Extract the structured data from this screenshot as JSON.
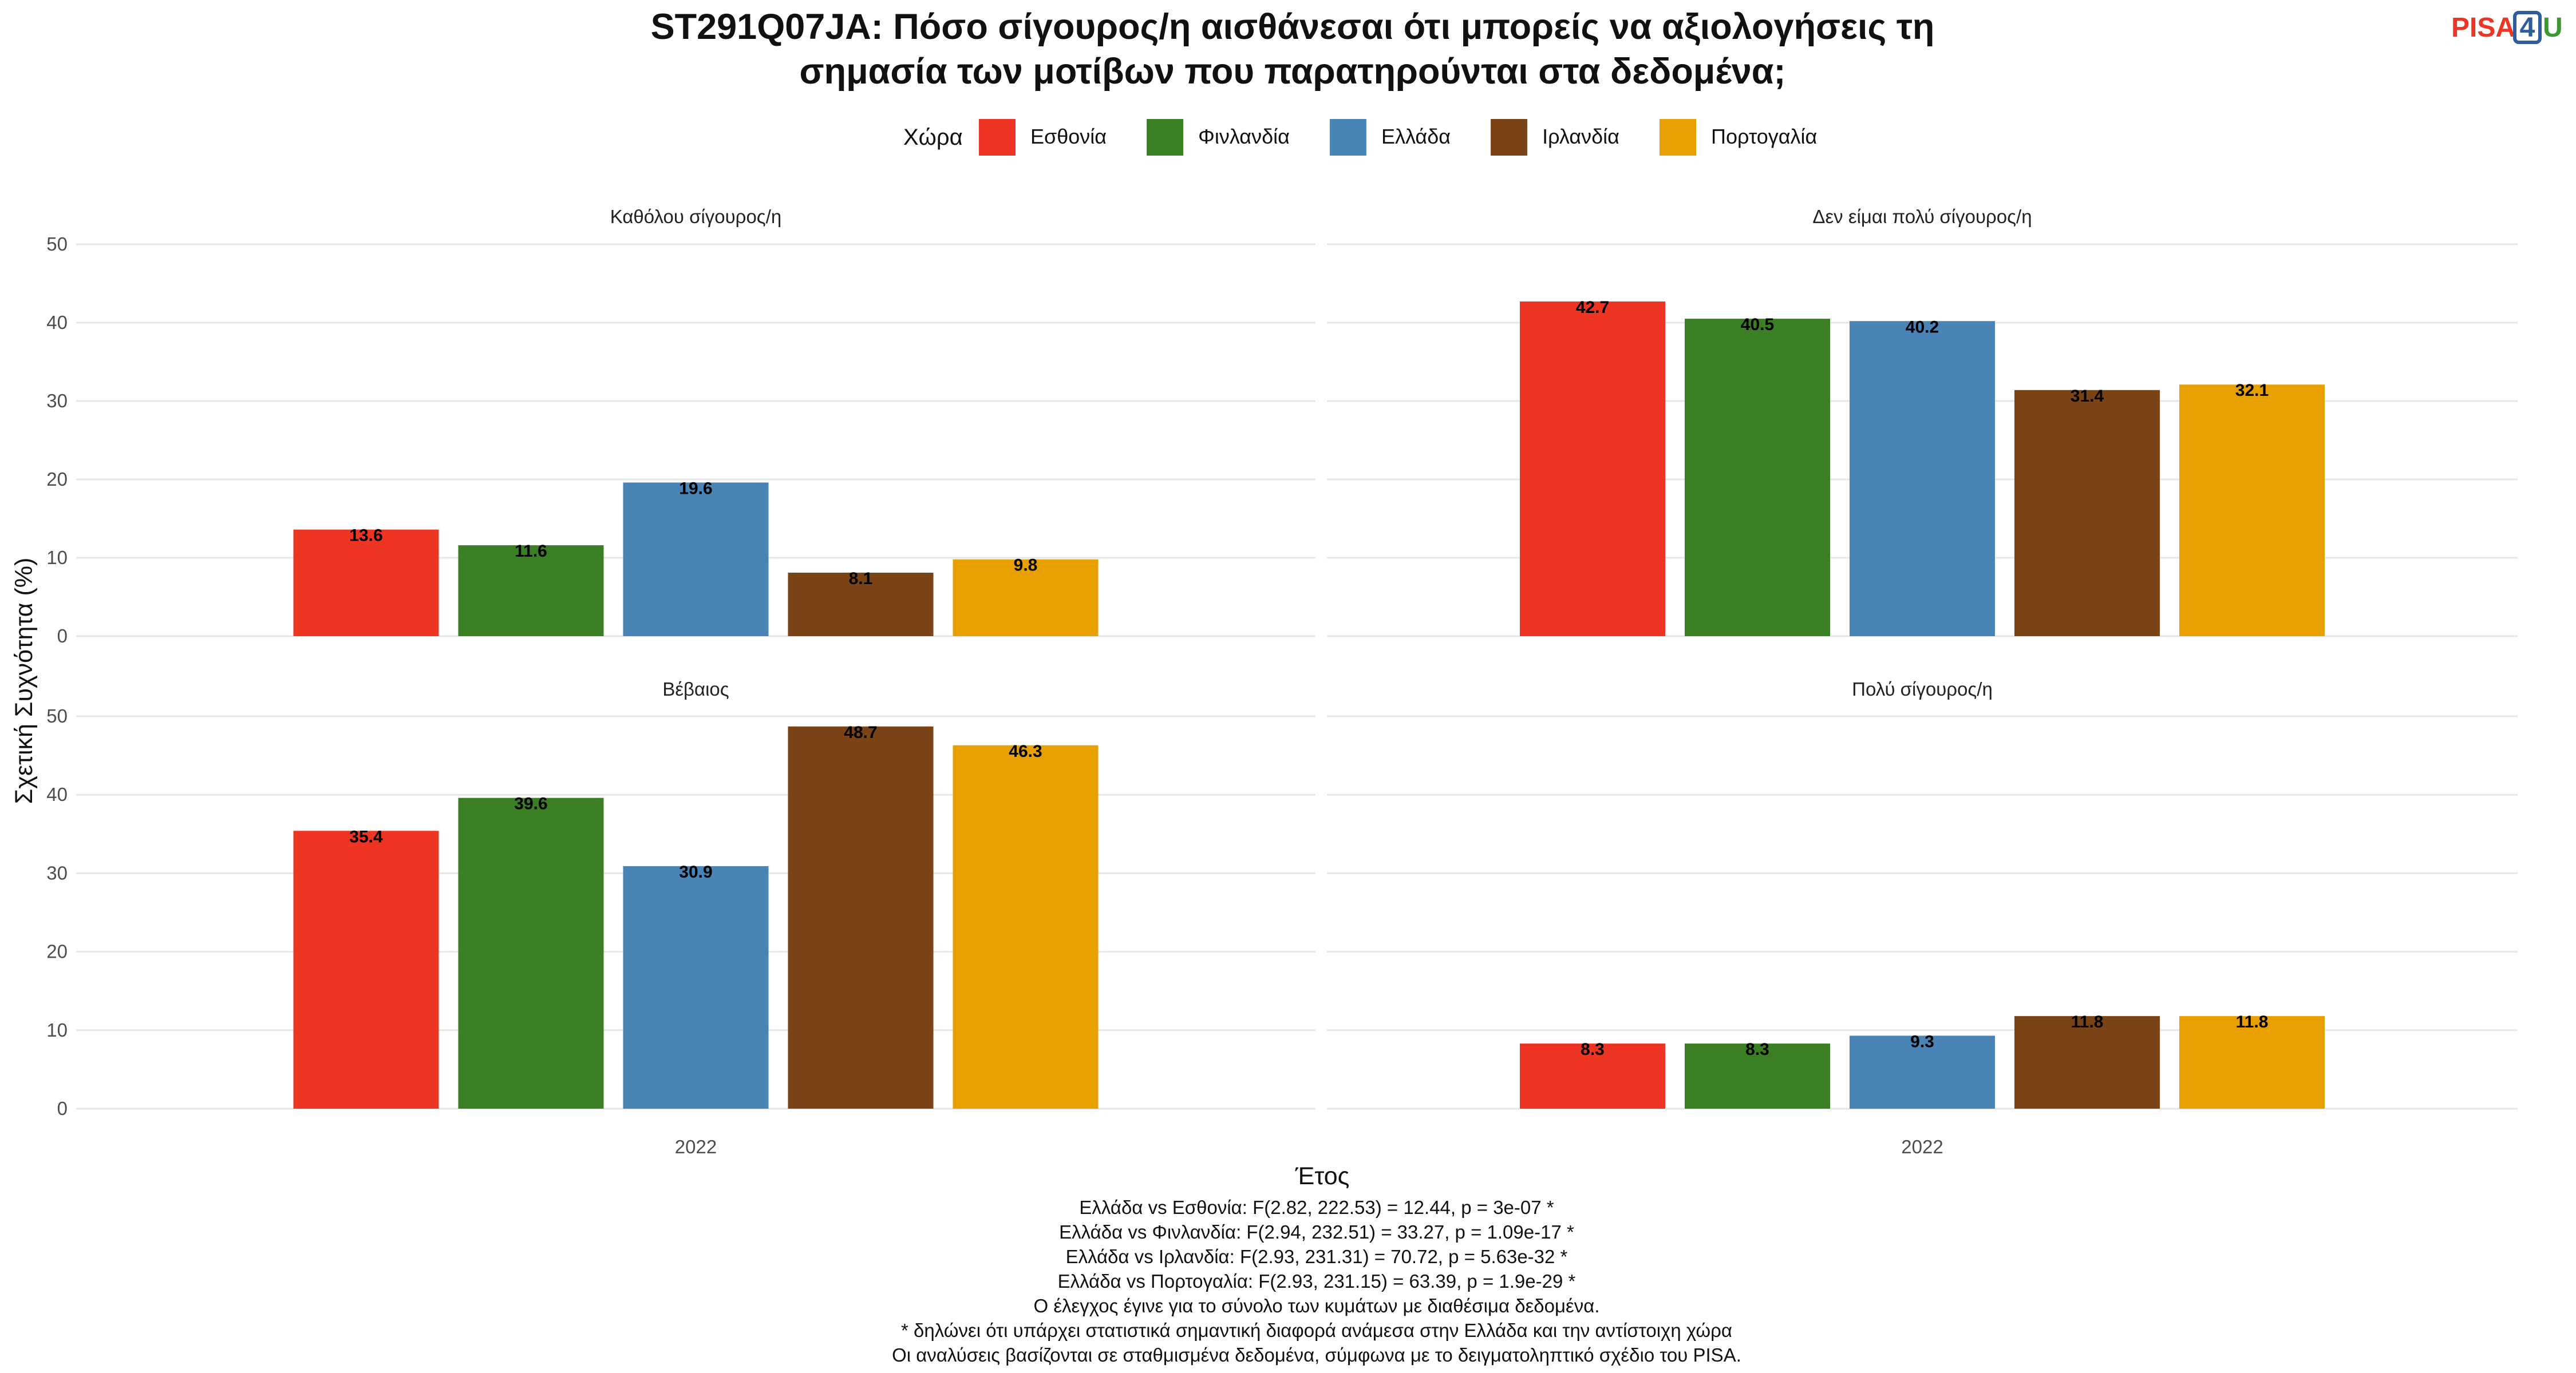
{
  "chart_data": {
    "type": "bar",
    "title_lines": [
      "ST291Q07JA: Πόσο σίγουρος/η αισθάνεσαι ότι μπορείς να αξιολογήσεις τη",
      "σημασία των μοτίβων που παρατηρούνται στα δεδομένα;"
    ],
    "legend_title": "Χώρα",
    "legend_position": "top",
    "series": [
      {
        "name": "Εσθονία",
        "color": "#EE3524"
      },
      {
        "name": "Φινλανδία",
        "color": "#3A7F23"
      },
      {
        "name": "Ελλάδα",
        "color": "#4A83B5"
      },
      {
        "name": "Ιρλανδία",
        "color": "#7B4417"
      },
      {
        "name": "Πορτογαλία",
        "color": "#E8A000"
      }
    ],
    "xlabel": "Έτος",
    "ylabel": "Σχετική Συχνότητα (%)",
    "ylim": [
      0,
      50
    ],
    "yticks": [
      "0",
      "10",
      "20",
      "30",
      "40",
      "50"
    ],
    "grid": true,
    "facets": [
      {
        "label": "Καθόλου σίγουρος/η",
        "category": "2022",
        "values": [
          13.6,
          11.6,
          19.6,
          8.1,
          9.8
        ]
      },
      {
        "label": "Δεν είμαι πολύ σίγουρος/η",
        "category": "2022",
        "values": [
          42.7,
          40.5,
          40.2,
          31.4,
          32.1
        ]
      },
      {
        "label": "Βέβαιος",
        "category": "2022",
        "values": [
          35.4,
          39.6,
          30.9,
          48.7,
          46.3
        ]
      },
      {
        "label": "Πολύ σίγουρος/η",
        "category": "2022",
        "values": [
          8.3,
          8.3,
          9.3,
          11.8,
          11.8
        ]
      }
    ],
    "footnotes": [
      "Ελλάδα vs Εσθονία: F(2.82, 222.53) = 12.44, p = 3e-07 *",
      "Ελλάδα vs Φινλανδία: F(2.94, 232.51) = 33.27, p = 1.09e-17 *",
      "Ελλάδα vs Ιρλανδία: F(2.93, 231.31) = 70.72, p = 5.63e-32 *",
      "Ελλάδα vs Πορτογαλία: F(2.93, 231.15) = 63.39, p = 1.9e-29 *",
      "Ο έλεγχος έγινε για το σύνολο των κυμάτων με διαθέσιμα δεδομένα.",
      "* δηλώνει ότι υπάρχει στατιστικά σημαντική διαφορά ανάμεσα στην Ελλάδα και την αντίστοιχη χώρα",
      "Οι αναλύσεις βασίζονται σε σταθμισμένα δεδομένα, σύμφωνα με το δειγματοληπτικό σχέδιο του PISA."
    ]
  },
  "logo": {
    "text_main": "PISA",
    "text_badge": "4",
    "text_tail": "U",
    "colors": {
      "main": "#EE3524",
      "badge": "#2F5C9A",
      "tail": "#3A9A2F"
    }
  }
}
